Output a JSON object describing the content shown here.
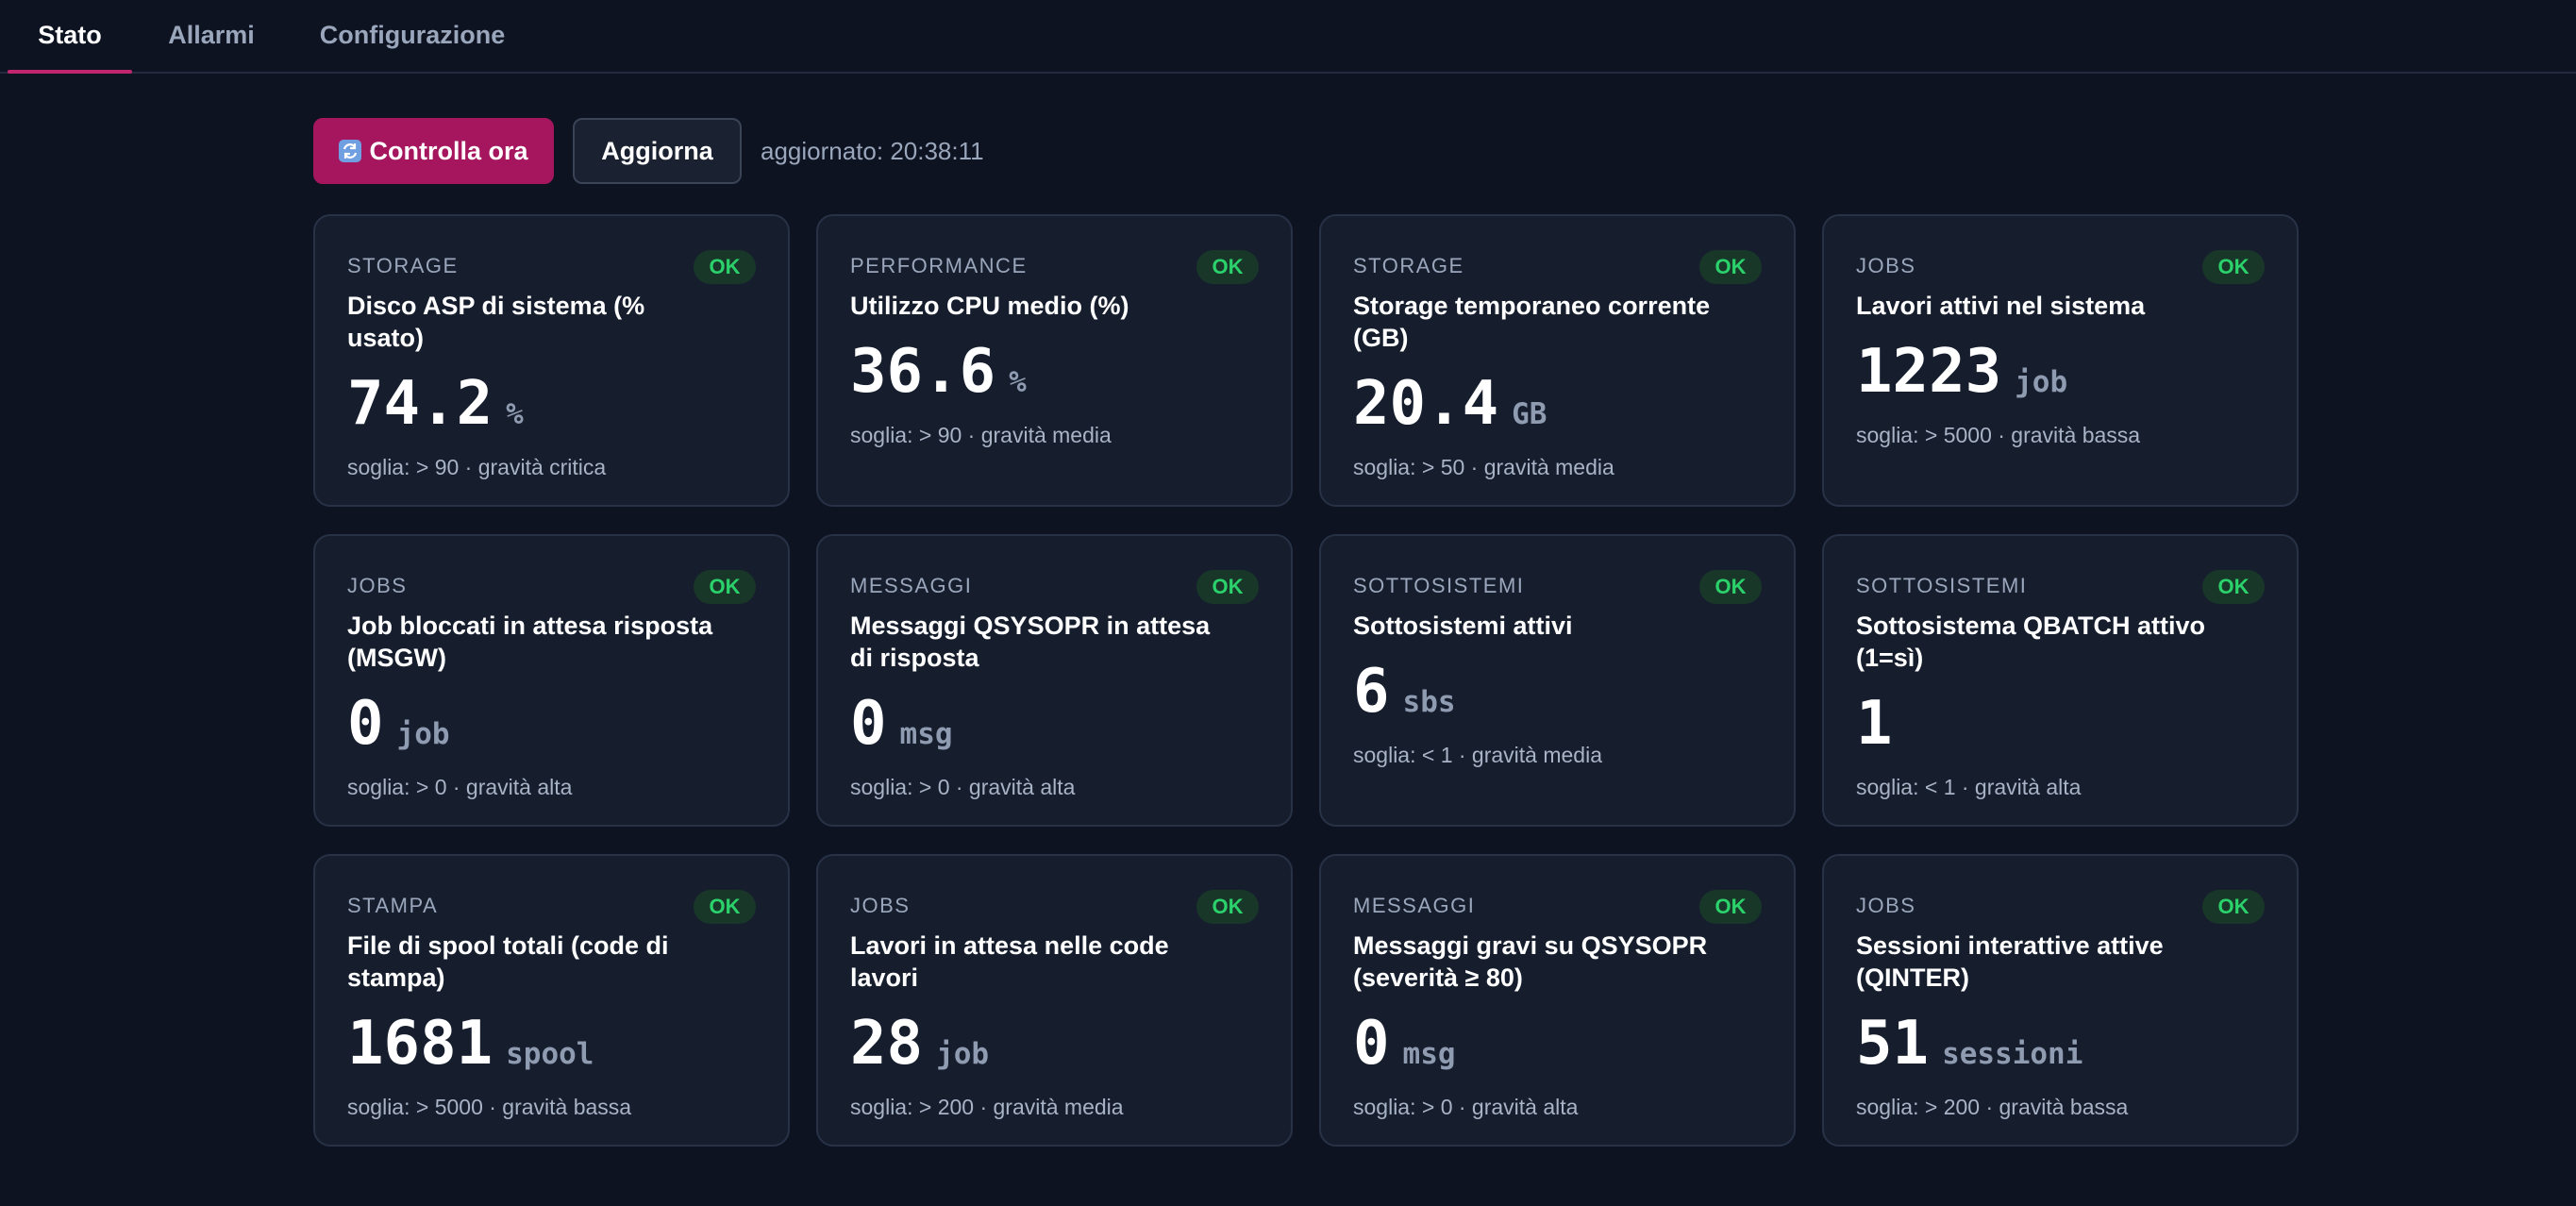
{
  "tabs": [
    {
      "label": "Stato",
      "active": true
    },
    {
      "label": "Allarmi",
      "active": false
    },
    {
      "label": "Configurazione",
      "active": false
    }
  ],
  "toolbar": {
    "check_icon": "refresh-icon",
    "check_label": "Controlla ora",
    "refresh_label": "Aggiorna",
    "updated_text": "aggiornato: 20:38:11"
  },
  "colors": {
    "accent": "#a5165f",
    "ok_text": "#2bd16b",
    "ok_bg": "#183729"
  },
  "cards": [
    {
      "category": "STORAGE",
      "title": "Disco ASP di sistema (% usato)",
      "value": "74.2",
      "unit": "%",
      "threshold": "soglia: > 90 · gravità critica",
      "status": "OK"
    },
    {
      "category": "PERFORMANCE",
      "title": "Utilizzo CPU medio (%)",
      "value": "36.6",
      "unit": "%",
      "threshold": "soglia: > 90 · gravità media",
      "status": "OK"
    },
    {
      "category": "STORAGE",
      "title": "Storage temporaneo corrente (GB)",
      "value": "20.4",
      "unit": "GB",
      "threshold": "soglia: > 50 · gravità media",
      "status": "OK"
    },
    {
      "category": "JOBS",
      "title": "Lavori attivi nel sistema",
      "value": "1223",
      "unit": "job",
      "threshold": "soglia: > 5000 · gravità bassa",
      "status": "OK"
    },
    {
      "category": "JOBS",
      "title": "Job bloccati in attesa risposta (MSGW)",
      "value": "0",
      "unit": "job",
      "threshold": "soglia: > 0 · gravità alta",
      "status": "OK"
    },
    {
      "category": "MESSAGGI",
      "title": "Messaggi QSYSOPR in attesa di risposta",
      "value": "0",
      "unit": "msg",
      "threshold": "soglia: > 0 · gravità alta",
      "status": "OK"
    },
    {
      "category": "SOTTOSISTEMI",
      "title": "Sottosistemi attivi",
      "value": "6",
      "unit": "sbs",
      "threshold": "soglia: < 1 · gravità media",
      "status": "OK"
    },
    {
      "category": "SOTTOSISTEMI",
      "title": "Sottosistema QBATCH attivo (1=sì)",
      "value": "1",
      "unit": "",
      "threshold": "soglia: < 1 · gravità alta",
      "status": "OK"
    },
    {
      "category": "STAMPA",
      "title": "File di spool totali (code di stampa)",
      "value": "1681",
      "unit": "spool",
      "threshold": "soglia: > 5000 · gravità bassa",
      "status": "OK"
    },
    {
      "category": "JOBS",
      "title": "Lavori in attesa nelle code lavori",
      "value": "28",
      "unit": "job",
      "threshold": "soglia: > 200 · gravità media",
      "status": "OK"
    },
    {
      "category": "MESSAGGI",
      "title": "Messaggi gravi su QSYSOPR (severità ≥ 80)",
      "value": "0",
      "unit": "msg",
      "threshold": "soglia: > 0 · gravità alta",
      "status": "OK"
    },
    {
      "category": "JOBS",
      "title": "Sessioni interattive attive (QINTER)",
      "value": "51",
      "unit": "sessioni",
      "threshold": "soglia: > 200 · gravità bassa",
      "status": "OK"
    }
  ]
}
